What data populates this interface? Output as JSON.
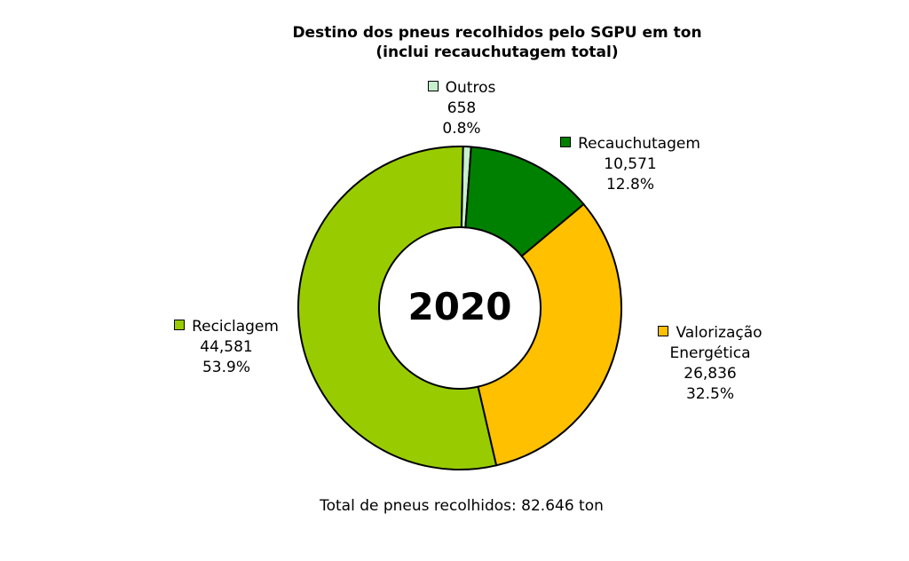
{
  "chart_data": {
    "type": "pie",
    "title": "Destino dos pneus recolhidos pelo SGPU em ton",
    "subtitle": "(inclui recauchutagem total)",
    "center_label": "2020",
    "total_note": "Total de pneus recolhidos: 82.646 ton",
    "slices": [
      {
        "name": "Outros",
        "value": 658,
        "value_label": "658",
        "percent_label": "0.8%",
        "color": "#C6EFCE"
      },
      {
        "name": "Recauchutagem",
        "value": 10571,
        "value_label": "10,571",
        "percent_label": "12.8%",
        "color": "#008000"
      },
      {
        "name_lines": [
          "Valorização",
          "Energética"
        ],
        "value": 26836,
        "value_label": "26,836",
        "percent_label": "32.5%",
        "color": "#FFC000"
      },
      {
        "name": "Reciclagem",
        "value": 44581,
        "value_label": "44,581",
        "percent_label": "53.9%",
        "color": "#99CC00"
      }
    ]
  }
}
